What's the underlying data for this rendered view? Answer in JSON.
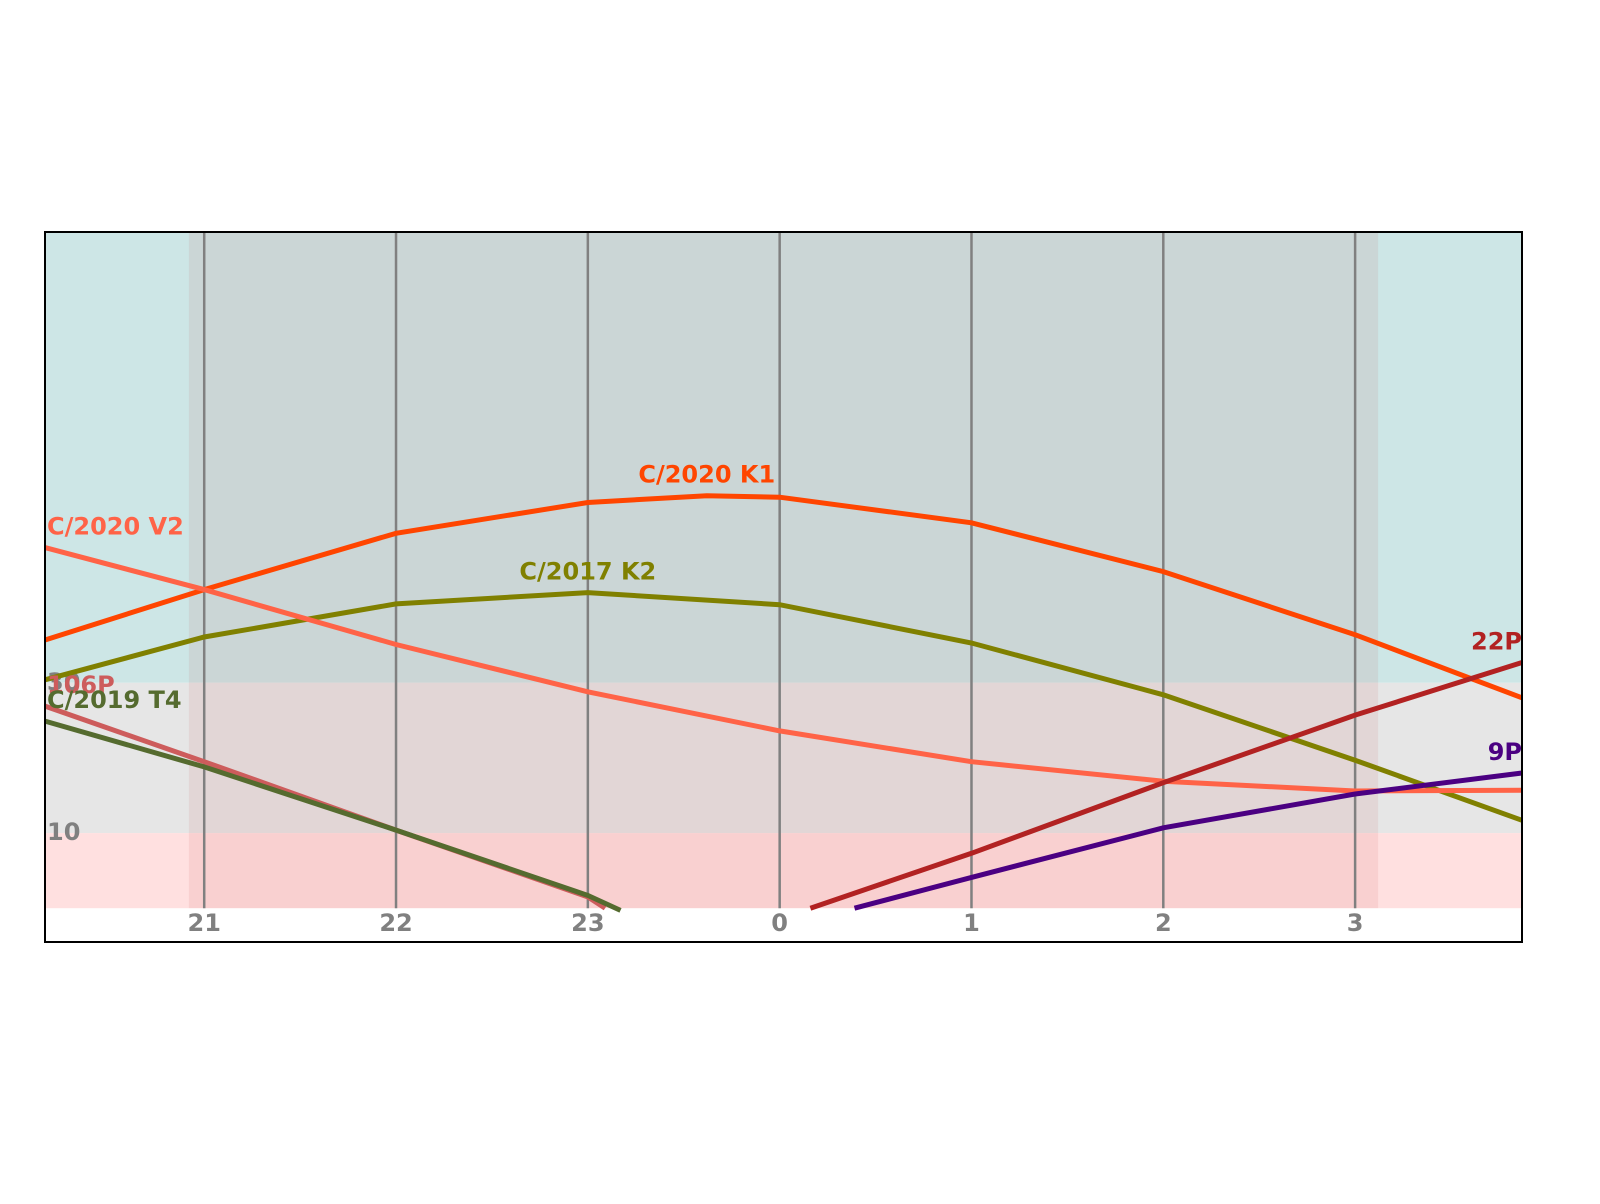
{
  "chart_data": {
    "type": "line",
    "xlim": [
      20.17,
      27.87
    ],
    "xticks": [
      {
        "value": 21,
        "label": "21"
      },
      {
        "value": 22,
        "label": "22"
      },
      {
        "value": 23,
        "label": "23"
      },
      {
        "value": 24,
        "label": "0"
      },
      {
        "value": 25,
        "label": "1"
      },
      {
        "value": 26,
        "label": "2"
      },
      {
        "value": 27,
        "label": "3"
      }
    ],
    "ylim": [
      -4.5,
      90
    ],
    "yticks": [
      10,
      30
    ],
    "grid": true,
    "zones": [
      {
        "from": 30,
        "to": 90,
        "color": "#cde6e6"
      },
      {
        "from": 10,
        "to": 30,
        "color": "#e6e6e6"
      },
      {
        "from": 0,
        "to": 10,
        "color": "#ffe0e0"
      }
    ],
    "night": [
      20.92,
      27.12
    ],
    "night_color": "rgba(185,60,55,0.09)",
    "series": [
      {
        "name": "C/2020 K1",
        "color": "#ff4500",
        "x": [
          20.17,
          21,
          22,
          23,
          23.62,
          24,
          25,
          26,
          27,
          27.87
        ],
        "values": [
          35.7,
          42.4,
          49.9,
          54,
          54.9,
          54.7,
          51.3,
          44.8,
          36.4,
          28
        ]
      },
      {
        "name": "C/2017 K2",
        "color": "#808000",
        "x": [
          20.17,
          21,
          22,
          23,
          24,
          25,
          26,
          27,
          27.87
        ],
        "values": [
          30.4,
          36.1,
          40.5,
          42,
          40.4,
          35.3,
          28.4,
          19.7,
          11.7
        ]
      },
      {
        "name": "C/2020 V2",
        "color": "#ff6347",
        "x": [
          20.17,
          21,
          22,
          23,
          24,
          25,
          26,
          27,
          27.87
        ],
        "values": [
          48,
          42.4,
          35.1,
          28.8,
          23.6,
          19.5,
          16.9,
          15.6,
          15.7
        ]
      },
      {
        "name": "106P",
        "color": "#cd5c5c",
        "x": [
          20.17,
          21,
          22,
          23,
          23.09
        ],
        "values": [
          26.9,
          19.5,
          10.4,
          1.5,
          0
        ]
      },
      {
        "name": "C/2019 T4",
        "color": "#556b2f",
        "x": [
          20.17,
          21,
          22,
          23,
          23.17
        ],
        "values": [
          24.9,
          18.8,
          10.4,
          1.7,
          -0.3
        ]
      },
      {
        "name": "22P",
        "color": "#b22222",
        "x": [
          24.16,
          25,
          26,
          27,
          27.87
        ],
        "values": [
          0,
          7.3,
          16.7,
          25.7,
          32.7
        ]
      },
      {
        "name": "9P",
        "color": "#4b0082",
        "x": [
          24.39,
          25,
          26,
          27,
          27.87
        ],
        "values": [
          0,
          4.1,
          10.7,
          15.2,
          18
        ]
      }
    ]
  }
}
